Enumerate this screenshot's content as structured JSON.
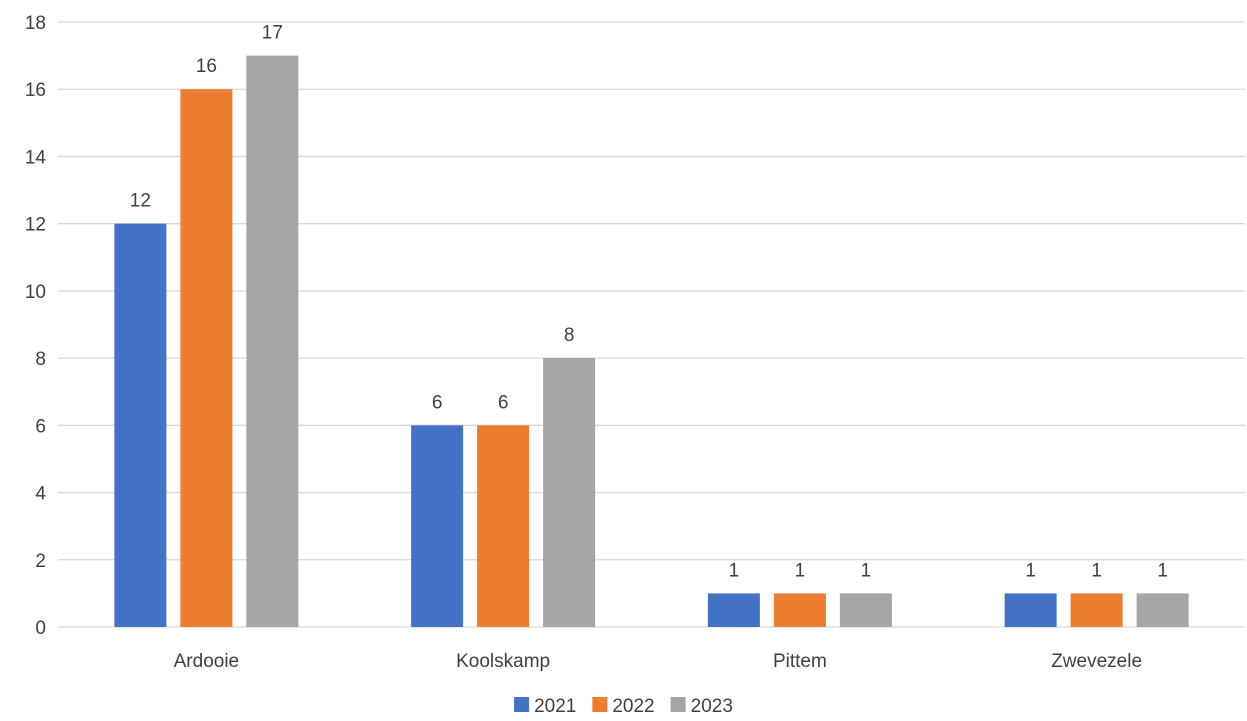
{
  "chart_data": {
    "type": "bar",
    "title": "",
    "xlabel": "",
    "ylabel": "",
    "categories": [
      "Ardooie",
      "Koolskamp",
      "Pittem",
      "Zwevezele"
    ],
    "series": [
      {
        "name": "2021",
        "values": [
          12,
          6,
          1,
          1
        ],
        "color": "#4472C4"
      },
      {
        "name": "2022",
        "values": [
          16,
          6,
          1,
          1
        ],
        "color": "#ED7D31"
      },
      {
        "name": "2023",
        "values": [
          17,
          8,
          1,
          1
        ],
        "color": "#A5A5A5"
      }
    ],
    "ylim": [
      0,
      18
    ],
    "yticks": [
      0,
      2,
      4,
      6,
      8,
      10,
      12,
      14,
      16,
      18
    ],
    "grid": true,
    "gridline_color": "#D9D9D9",
    "legend_position": "bottom",
    "data_labels": true
  }
}
